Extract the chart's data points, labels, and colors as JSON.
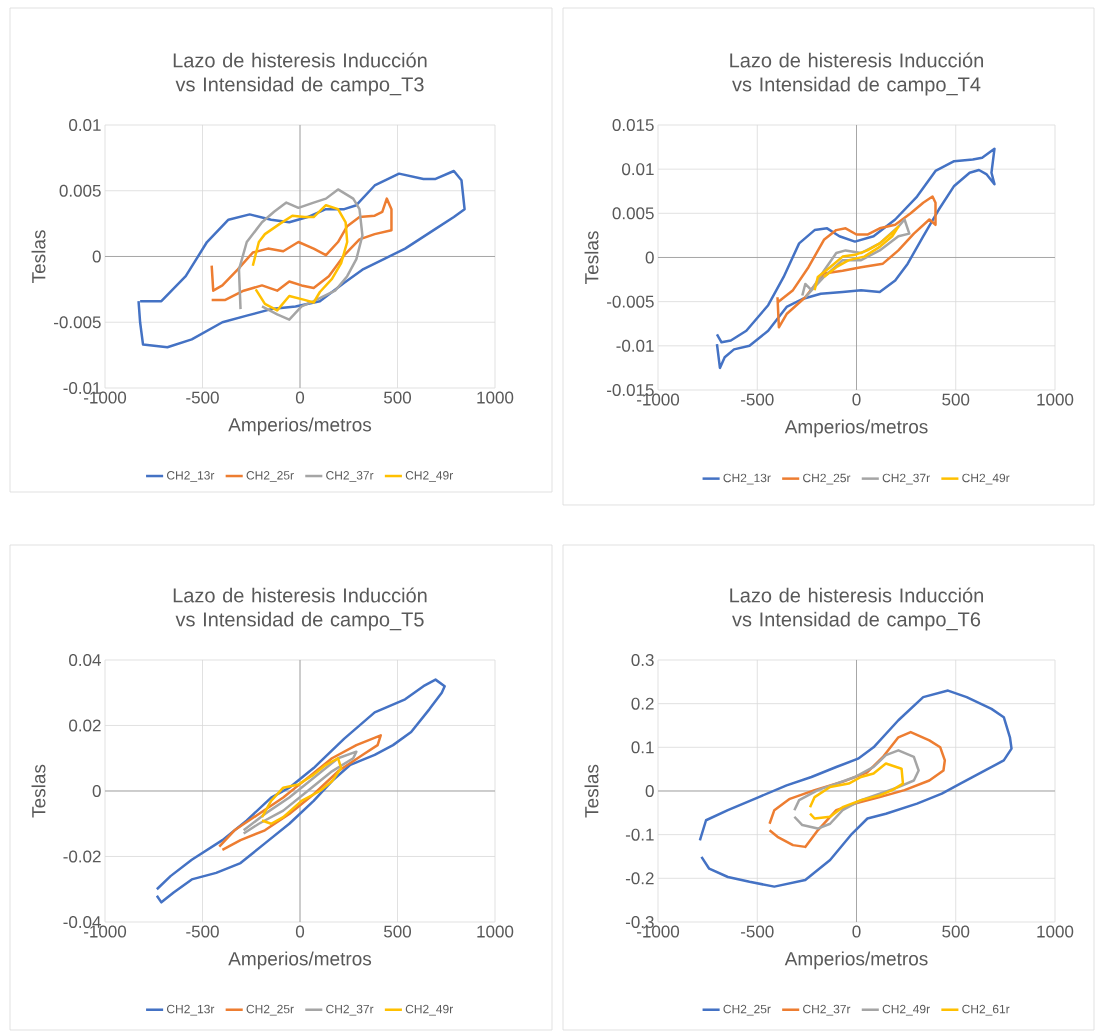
{
  "chart_data": [
    {
      "type": "line",
      "title": "Lazo de histeresis Inducción vs Intensidad de campo_T3",
      "xlabel": "Amperios/metros",
      "ylabel": "Teslas",
      "xlim": [
        -1000,
        1000
      ],
      "ylim": [
        -0.01,
        0.01
      ],
      "xticks": [
        -1000,
        -500,
        0,
        500,
        1000
      ],
      "yticks": [
        -0.01,
        -0.005,
        0,
        0.005,
        0.01
      ],
      "grid": true,
      "legend": "bottom",
      "series": [
        {
          "name": "CH2_13r",
          "color": "#4472c4",
          "x": [
            -820,
            -711,
            -586,
            -477,
            -367,
            -258,
            -148,
            -55,
            39,
            133,
            227,
            289,
            383,
            508,
            633,
            695,
            789,
            828,
            844,
            789,
            695,
            539,
            430,
            320,
            227,
            102,
            -23,
            -148,
            -273,
            -398,
            -555,
            -680,
            -805,
            -820,
            -828
          ],
          "values": [
            -0.0034,
            -0.0034,
            -0.0015,
            0.0011,
            0.0028,
            0.0032,
            0.0028,
            0.0026,
            0.003,
            0.0036,
            0.0036,
            0.0039,
            0.0054,
            0.0063,
            0.0059,
            0.0059,
            0.0065,
            0.0058,
            0.0036,
            0.003,
            0.0021,
            0.0006,
            -0.0002,
            -0.001,
            -0.002,
            -0.0034,
            -0.0038,
            -0.004,
            -0.0045,
            -0.005,
            -0.0063,
            -0.0069,
            -0.0067,
            -0.005,
            -0.0034
          ]
        },
        {
          "name": "CH2_25r",
          "color": "#ed7d31",
          "x": [
            -453,
            -445,
            -398,
            -320,
            -242,
            -164,
            -86,
            -8,
            70,
            133,
            195,
            242,
            305,
            383,
            422,
            445,
            469,
            469,
            383,
            305,
            227,
            148,
            70,
            8,
            -55,
            -117,
            -195,
            -289,
            -383,
            -453
          ],
          "values": [
            -0.0007,
            -0.0026,
            -0.0022,
            -0.001,
            0.0003,
            0.0006,
            0.0004,
            0.0011,
            0.0006,
            0.0001,
            0.0011,
            0.0023,
            0.003,
            0.0031,
            0.0034,
            0.0044,
            0.0036,
            0.002,
            0.0017,
            0.0013,
            0.0001,
            -0.0015,
            -0.0024,
            -0.0022,
            -0.0019,
            -0.0026,
            -0.0022,
            -0.0026,
            -0.0033,
            -0.0033
          ]
        },
        {
          "name": "CH2_37r",
          "color": "#a5a5a5",
          "x": [
            -305,
            -313,
            -273,
            -195,
            -133,
            -70,
            -8,
            70,
            133,
            195,
            273,
            305,
            320,
            289,
            242,
            180,
            70,
            8,
            -55,
            -117,
            -195
          ],
          "values": [
            -0.004,
            -0.001,
            0.0011,
            0.0026,
            0.0034,
            0.0041,
            0.0037,
            0.0041,
            0.0044,
            0.0051,
            0.0044,
            0.0036,
            0.0016,
            -0.0002,
            -0.0015,
            -0.0026,
            -0.0034,
            -0.0038,
            -0.0048,
            -0.0044,
            -0.0038
          ]
        },
        {
          "name": "CH2_49r",
          "color": "#ffc000",
          "x": [
            -242,
            -211,
            -180,
            -102,
            -39,
            23,
            70,
            133,
            195,
            234,
            242,
            211,
            164,
            102,
            70,
            23,
            -55,
            -117,
            -180,
            -227
          ],
          "values": [
            -0.0007,
            0.0011,
            0.0017,
            0.0025,
            0.0031,
            0.003,
            0.003,
            0.0039,
            0.0036,
            0.0026,
            0.0011,
            -0.0005,
            -0.0017,
            -0.0027,
            -0.0035,
            -0.0033,
            -0.003,
            -0.0041,
            -0.0036,
            -0.0025
          ]
        }
      ]
    },
    {
      "type": "line",
      "title": "Lazo de histeresis Inducción vs Intensidad de campo_T4",
      "xlabel": "Amperios/metros",
      "ylabel": "Teslas",
      "xlim": [
        -1000,
        1000
      ],
      "ylim": [
        -0.015,
        0.015
      ],
      "xticks": [
        -1000,
        -500,
        0,
        500,
        1000
      ],
      "yticks": [
        -0.015,
        -0.01,
        -0.005,
        0,
        0.005,
        0.01,
        0.015
      ],
      "grid": true,
      "legend": "bottom",
      "series": [
        {
          "name": "CH2_13r",
          "color": "#4472c4",
          "x": [
            -703,
            -680,
            -633,
            -555,
            -445,
            -367,
            -289,
            -211,
            -148,
            -86,
            -8,
            86,
            195,
            305,
            398,
            492,
            586,
            633,
            695,
            680,
            695,
            656,
            617,
            570,
            492,
            414,
            336,
            258,
            195,
            117,
            23,
            -70,
            -180,
            -273,
            -352,
            -445,
            -539,
            -617,
            -664,
            -688,
            -703
          ],
          "values": [
            -0.0087,
            -0.0096,
            -0.0094,
            -0.0083,
            -0.0054,
            -0.0022,
            0.0016,
            0.0031,
            0.0033,
            0.0024,
            0.0018,
            0.0024,
            0.0043,
            0.0069,
            0.0098,
            0.0109,
            0.0111,
            0.0113,
            0.0123,
            0.0096,
            0.0083,
            0.0094,
            0.0099,
            0.0096,
            0.0081,
            0.0054,
            0.0024,
            -0.0007,
            -0.0026,
            -0.0039,
            -0.0037,
            -0.0039,
            -0.0041,
            -0.0047,
            -0.0056,
            -0.0083,
            -0.01,
            -0.0104,
            -0.0113,
            -0.0125,
            -0.0098
          ]
        },
        {
          "name": "CH2_25r",
          "color": "#ed7d31",
          "x": [
            -398,
            -391,
            -352,
            -258,
            -164,
            -70,
            23,
            133,
            211,
            289,
            367,
            398,
            398,
            383,
            336,
            273,
            195,
            117,
            55,
            0,
            -55,
            -102,
            -164,
            -242,
            -320,
            -398
          ],
          "values": [
            -0.0045,
            -0.0079,
            -0.0064,
            -0.0045,
            -0.0018,
            -0.0015,
            -0.0011,
            -0.0007,
            0.0008,
            0.0027,
            0.0043,
            0.0037,
            0.0062,
            0.0069,
            0.0062,
            0.005,
            0.0037,
            0.0033,
            0.0026,
            0.0026,
            0.0033,
            0.0031,
            0.002,
            -0.0011,
            -0.0037,
            -0.0051
          ]
        },
        {
          "name": "CH2_37r",
          "color": "#a5a5a5",
          "x": [
            -273,
            -258,
            -227,
            -164,
            -102,
            -55,
            23,
            117,
            211,
            242,
            266,
            211,
            117,
            23,
            -70,
            -164,
            -258
          ],
          "values": [
            -0.0043,
            -0.003,
            -0.0037,
            -0.0015,
            0.0005,
            0.0008,
            0.0005,
            0.0016,
            0.0035,
            0.0043,
            0.0027,
            0.0024,
            0.0008,
            -0.0003,
            -0.0003,
            -0.0022,
            -0.0045
          ]
        },
        {
          "name": "CH2_49r",
          "color": "#ffc000",
          "x": [
            -211,
            -195,
            -133,
            -70,
            -8,
            55,
            117,
            195,
            211,
            180,
            117,
            39,
            -39,
            -102,
            -164
          ],
          "values": [
            -0.0037,
            -0.0022,
            -0.0011,
            0.0001,
            0.0003,
            0.0008,
            0.0016,
            0.0031,
            0.0035,
            0.0024,
            0.0012,
            0.0001,
            -0.0003,
            -0.0011,
            -0.0022
          ]
        }
      ]
    },
    {
      "type": "line",
      "title": "Lazo de histeresis Inducción vs Intensidad de campo_T5",
      "xlabel": "Amperios/metros",
      "ylabel": "Teslas",
      "xlim": [
        -1000,
        1000
      ],
      "ylim": [
        -0.04,
        0.04
      ],
      "xticks": [
        -1000,
        -500,
        0,
        500,
        1000
      ],
      "yticks": [
        -0.04,
        -0.02,
        0,
        0.02,
        0.04
      ],
      "grid": true,
      "legend": "bottom",
      "series": [
        {
          "name": "CH2_13r",
          "color": "#4472c4",
          "x": [
            -734,
            -664,
            -555,
            -398,
            -273,
            -148,
            -55,
            70,
            227,
            383,
            539,
            633,
            695,
            742,
            727,
            664,
            570,
            477,
            383,
            258,
            164,
            70,
            -55,
            -180,
            -305,
            -430,
            -555,
            -648,
            -711,
            -734
          ],
          "values": [
            -0.03,
            -0.026,
            -0.021,
            -0.015,
            -0.009,
            -0.002,
            0.001,
            0.007,
            0.016,
            0.024,
            0.028,
            0.032,
            0.034,
            0.032,
            0.03,
            0.025,
            0.018,
            0.014,
            0.011,
            0.008,
            0.003,
            -0.003,
            -0.01,
            -0.016,
            -0.022,
            -0.025,
            -0.027,
            -0.031,
            -0.034,
            -0.032
          ]
        },
        {
          "name": "CH2_25r",
          "color": "#ed7d31",
          "x": [
            -414,
            -336,
            -211,
            -86,
            39,
            164,
            289,
            414,
            398,
            320,
            195,
            70,
            -55,
            -180,
            -305,
            -398
          ],
          "values": [
            -0.017,
            -0.012,
            -0.007,
            -0.002,
            0.004,
            0.01,
            0.014,
            0.017,
            0.014,
            0.011,
            0.006,
            -0.001,
            -0.007,
            -0.012,
            -0.015,
            -0.018
          ]
        },
        {
          "name": "CH2_37r",
          "color": "#a5a5a5",
          "x": [
            -289,
            -180,
            -55,
            70,
            195,
            289,
            273,
            164,
            39,
            -86,
            -211,
            -289
          ],
          "values": [
            -0.012,
            -0.007,
            -0.002,
            0.004,
            0.01,
            0.012,
            0.01,
            0.006,
            0.0,
            -0.006,
            -0.01,
            -0.013
          ]
        },
        {
          "name": "CH2_49r",
          "color": "#ffc000",
          "x": [
            -195,
            -148,
            -86,
            -8,
            70,
            133,
            195,
            211,
            164,
            102,
            8,
            -86,
            -148,
            -195
          ],
          "values": [
            -0.008,
            -0.003,
            0.001,
            0.002,
            0.005,
            0.008,
            0.01,
            0.007,
            0.003,
            0.0,
            -0.003,
            -0.008,
            -0.01,
            -0.009
          ]
        }
      ]
    },
    {
      "type": "line",
      "title": "Lazo de histeresis Inducción vs Intensidad de campo_T6",
      "xlabel": "Amperios/metros",
      "ylabel": "Teslas",
      "xlim": [
        -1000,
        1000
      ],
      "ylim": [
        -0.3,
        0.3
      ],
      "xticks": [
        -1000,
        -500,
        0,
        500,
        1000
      ],
      "yticks": [
        -0.3,
        -0.2,
        -0.1,
        0,
        0.1,
        0.2,
        0.3
      ],
      "grid": true,
      "legend": "bottom",
      "series": [
        {
          "name": "CH2_25r",
          "color": "#4472c4",
          "x": [
            -789,
            -758,
            -648,
            -492,
            -352,
            -227,
            -102,
            8,
            86,
            211,
            336,
            461,
            555,
            680,
            742,
            773,
            781,
            742,
            648,
            523,
            430,
            305,
            148,
            55,
            -23,
            -133,
            -258,
            -414,
            -539,
            -648,
            -742,
            -781
          ],
          "values": [
            -0.113,
            -0.067,
            -0.044,
            -0.014,
            0.013,
            0.032,
            0.055,
            0.074,
            0.1,
            0.162,
            0.215,
            0.23,
            0.215,
            0.188,
            0.169,
            0.123,
            0.097,
            0.07,
            0.047,
            0.017,
            -0.006,
            -0.029,
            -0.052,
            -0.063,
            -0.098,
            -0.158,
            -0.204,
            -0.219,
            -0.208,
            -0.197,
            -0.178,
            -0.151
          ]
        },
        {
          "name": "CH2_37r",
          "color": "#ed7d31",
          "x": [
            -438,
            -414,
            -336,
            -211,
            -70,
            55,
            133,
            211,
            273,
            367,
            422,
            445,
            438,
            367,
            242,
            117,
            -8,
            -102,
            -195,
            -258,
            -320,
            -398,
            -438
          ],
          "values": [
            -0.075,
            -0.044,
            -0.018,
            0.002,
            0.021,
            0.043,
            0.078,
            0.123,
            0.135,
            0.116,
            0.1,
            0.07,
            0.047,
            0.024,
            0.002,
            -0.014,
            -0.029,
            -0.044,
            -0.09,
            -0.128,
            -0.124,
            -0.105,
            -0.09
          ]
        },
        {
          "name": "CH2_49r",
          "color": "#a5a5a5",
          "x": [
            -313,
            -289,
            -195,
            -102,
            -8,
            86,
            148,
            211,
            289,
            313,
            289,
            211,
            117,
            23,
            -70,
            -133,
            -195,
            -273,
            -313
          ],
          "values": [
            -0.044,
            -0.021,
            0.002,
            0.017,
            0.032,
            0.055,
            0.082,
            0.093,
            0.078,
            0.047,
            0.024,
            0.009,
            -0.006,
            -0.021,
            -0.044,
            -0.075,
            -0.086,
            -0.078,
            -0.059
          ]
        },
        {
          "name": "CH2_61r",
          "color": "#ffc000",
          "x": [
            -234,
            -211,
            -133,
            -39,
            23,
            86,
            148,
            227,
            234,
            180,
            117,
            23,
            -70,
            -133,
            -211,
            -234
          ],
          "values": [
            -0.037,
            -0.014,
            0.009,
            0.017,
            0.032,
            0.04,
            0.063,
            0.051,
            0.017,
            0.002,
            -0.01,
            -0.021,
            -0.037,
            -0.059,
            -0.063,
            -0.052
          ]
        }
      ]
    }
  ]
}
